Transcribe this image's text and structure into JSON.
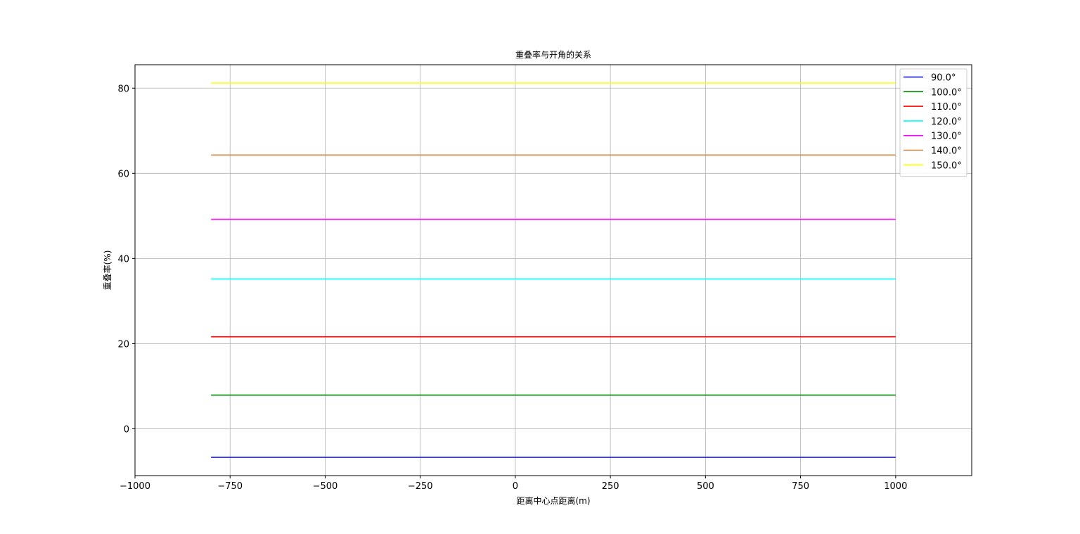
{
  "chart_data": {
    "type": "line",
    "title": "重叠率与开角的关系",
    "xlabel": "距离中心点距离(m)",
    "ylabel": "重叠率(%)",
    "xlim": [
      -1000,
      1200
    ],
    "ylim": [
      -11,
      85.5
    ],
    "xticks": [
      -1000,
      -750,
      -500,
      -250,
      0,
      250,
      500,
      750,
      1000
    ],
    "xtick_labels": [
      "−1000",
      "−750",
      "−500",
      "−250",
      "0",
      "250",
      "500",
      "750",
      "1000"
    ],
    "yticks": [
      0,
      20,
      40,
      60,
      80
    ],
    "ytick_labels": [
      "0",
      "20",
      "40",
      "60",
      "80"
    ],
    "grid": true,
    "legend_position": "top-right",
    "x": [
      -800,
      1000
    ],
    "series": [
      {
        "name": "90.0°",
        "color": "#0000ff",
        "values": [
          -6.7,
          -6.7
        ]
      },
      {
        "name": "100.0°",
        "color": "#008000",
        "values": [
          7.9,
          7.9
        ]
      },
      {
        "name": "110.0°",
        "color": "#ff0000",
        "values": [
          21.6,
          21.6
        ]
      },
      {
        "name": "120.0°",
        "color": "#00ffff",
        "values": [
          35.2,
          35.2
        ]
      },
      {
        "name": "130.0°",
        "color": "#ff00ff",
        "values": [
          49.2,
          49.2
        ]
      },
      {
        "name": "140.0°",
        "color": "#cd853f",
        "values": [
          64.3,
          64.3
        ]
      },
      {
        "name": "150.0°",
        "color": "#ffff00",
        "values": [
          81.2,
          81.2
        ]
      }
    ]
  }
}
